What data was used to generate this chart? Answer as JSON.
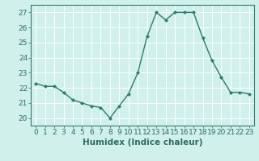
{
  "x": [
    0,
    1,
    2,
    3,
    4,
    5,
    6,
    7,
    8,
    9,
    10,
    11,
    12,
    13,
    14,
    15,
    16,
    17,
    18,
    19,
    20,
    21,
    22,
    23
  ],
  "y": [
    22.3,
    22.1,
    22.1,
    21.7,
    21.2,
    21.0,
    20.8,
    20.7,
    20.0,
    20.8,
    21.6,
    23.0,
    25.4,
    27.0,
    26.5,
    27.0,
    27.0,
    27.0,
    25.3,
    23.8,
    22.7,
    21.7,
    21.7,
    21.6
  ],
  "line_color": "#2d7d6e",
  "marker": "D",
  "marker_size": 2,
  "bg_color": "#cff0eb",
  "grid_color": "#ffffff",
  "xlabel": "Humidex (Indice chaleur)",
  "ylabel_ticks": [
    20,
    21,
    22,
    23,
    24,
    25,
    26,
    27
  ],
  "xlim": [
    -0.5,
    23.5
  ],
  "ylim": [
    19.5,
    27.5
  ],
  "text_color": "#2d6e65",
  "tick_fontsize": 6.5,
  "xlabel_fontsize": 7.5,
  "line_width": 1.0,
  "spine_color": "#2d7d6e"
}
